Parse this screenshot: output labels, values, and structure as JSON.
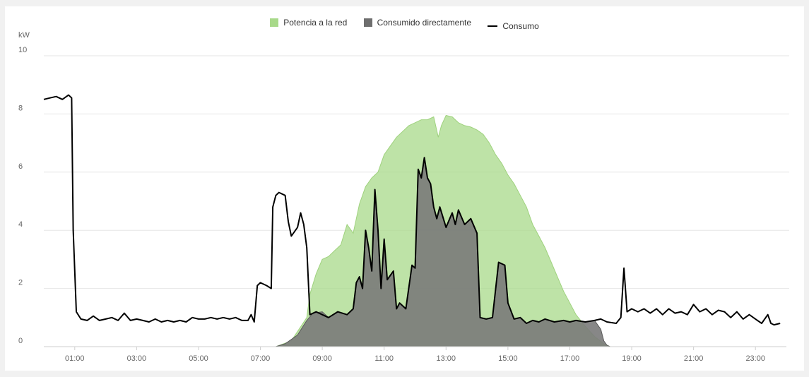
{
  "chart_data": {
    "type": "area",
    "ylabel": "kW",
    "ylim": [
      0,
      10
    ],
    "y_ticks": [
      "0",
      "2",
      "4",
      "6",
      "8",
      "10"
    ],
    "x_tick_labels": [
      "01:00",
      "03:00",
      "05:00",
      "07:00",
      "09:00",
      "11:00",
      "13:00",
      "15:00",
      "17:00",
      "19:00",
      "21:00",
      "23:00"
    ],
    "x_tick_hours": [
      1,
      3,
      5,
      7,
      9,
      11,
      13,
      15,
      17,
      19,
      21,
      23
    ],
    "xlim_hours": [
      0,
      24
    ],
    "grid": true,
    "legend_position": "top-center",
    "series": [
      {
        "name": "Potencia a la red",
        "type": "area",
        "color": "#a8d98a",
        "points": [
          [
            0,
            0
          ],
          [
            7.5,
            0
          ],
          [
            8.0,
            0.2
          ],
          [
            8.5,
            1.0
          ],
          [
            8.6,
            1.8
          ],
          [
            8.8,
            2.5
          ],
          [
            9.0,
            3.0
          ],
          [
            9.2,
            3.1
          ],
          [
            9.4,
            3.3
          ],
          [
            9.6,
            3.5
          ],
          [
            9.8,
            4.2
          ],
          [
            10.0,
            3.9
          ],
          [
            10.2,
            4.9
          ],
          [
            10.4,
            5.5
          ],
          [
            10.6,
            5.8
          ],
          [
            10.8,
            6.0
          ],
          [
            11.0,
            6.6
          ],
          [
            11.2,
            6.9
          ],
          [
            11.4,
            7.2
          ],
          [
            11.6,
            7.4
          ],
          [
            11.8,
            7.6
          ],
          [
            12.0,
            7.7
          ],
          [
            12.2,
            7.8
          ],
          [
            12.4,
            7.8
          ],
          [
            12.6,
            7.9
          ],
          [
            12.75,
            7.2
          ],
          [
            12.85,
            7.6
          ],
          [
            13.0,
            7.95
          ],
          [
            13.2,
            7.9
          ],
          [
            13.4,
            7.7
          ],
          [
            13.6,
            7.6
          ],
          [
            13.8,
            7.55
          ],
          [
            14.0,
            7.45
          ],
          [
            14.2,
            7.3
          ],
          [
            14.4,
            7.0
          ],
          [
            14.6,
            6.6
          ],
          [
            14.8,
            6.3
          ],
          [
            15.0,
            5.9
          ],
          [
            15.2,
            5.6
          ],
          [
            15.4,
            5.2
          ],
          [
            15.6,
            4.8
          ],
          [
            15.8,
            4.2
          ],
          [
            16.0,
            3.8
          ],
          [
            16.2,
            3.4
          ],
          [
            16.4,
            2.9
          ],
          [
            16.6,
            2.4
          ],
          [
            16.8,
            1.9
          ],
          [
            17.0,
            1.5
          ],
          [
            17.2,
            1.1
          ],
          [
            17.5,
            0.7
          ],
          [
            17.8,
            0.35
          ],
          [
            18.1,
            0.1
          ],
          [
            18.3,
            0
          ],
          [
            24,
            0
          ]
        ]
      },
      {
        "name": "Consumido directamente",
        "type": "area",
        "color": "#7a7a7a",
        "points": [
          [
            0,
            0
          ],
          [
            7.5,
            0
          ],
          [
            7.8,
            0.1
          ],
          [
            8.2,
            0.4
          ],
          [
            8.5,
            0.9
          ],
          [
            8.7,
            1.15
          ],
          [
            9.0,
            1.2
          ],
          [
            9.2,
            1.0
          ],
          [
            9.5,
            1.2
          ],
          [
            9.8,
            1.1
          ],
          [
            10.0,
            1.3
          ],
          [
            10.1,
            2.2
          ],
          [
            10.2,
            2.4
          ],
          [
            10.3,
            2.0
          ],
          [
            10.4,
            4.0
          ],
          [
            10.5,
            3.4
          ],
          [
            10.6,
            2.6
          ],
          [
            10.7,
            5.4
          ],
          [
            10.8,
            4.0
          ],
          [
            10.9,
            2.0
          ],
          [
            11.0,
            3.7
          ],
          [
            11.1,
            2.3
          ],
          [
            11.3,
            2.6
          ],
          [
            11.4,
            1.3
          ],
          [
            11.5,
            1.5
          ],
          [
            11.7,
            1.3
          ],
          [
            11.9,
            2.8
          ],
          [
            12.0,
            2.7
          ],
          [
            12.1,
            6.1
          ],
          [
            12.2,
            5.8
          ],
          [
            12.3,
            6.5
          ],
          [
            12.4,
            5.8
          ],
          [
            12.5,
            5.6
          ],
          [
            12.6,
            4.8
          ],
          [
            12.7,
            4.4
          ],
          [
            12.8,
            4.8
          ],
          [
            13.0,
            4.1
          ],
          [
            13.2,
            4.6
          ],
          [
            13.3,
            4.2
          ],
          [
            13.4,
            4.7
          ],
          [
            13.6,
            4.2
          ],
          [
            13.8,
            4.4
          ],
          [
            14.0,
            3.9
          ],
          [
            14.1,
            1.0
          ],
          [
            14.3,
            0.95
          ],
          [
            14.5,
            1.0
          ],
          [
            14.7,
            2.9
          ],
          [
            14.9,
            2.8
          ],
          [
            15.0,
            1.5
          ],
          [
            15.2,
            0.95
          ],
          [
            15.4,
            1.0
          ],
          [
            15.6,
            0.8
          ],
          [
            15.8,
            0.9
          ],
          [
            16.0,
            0.85
          ],
          [
            16.2,
            0.95
          ],
          [
            16.5,
            0.85
          ],
          [
            16.8,
            0.9
          ],
          [
            17.0,
            0.85
          ],
          [
            17.2,
            0.9
          ],
          [
            17.5,
            0.85
          ],
          [
            17.8,
            0.9
          ],
          [
            18.0,
            0.6
          ],
          [
            18.1,
            0.2
          ],
          [
            18.2,
            0.05
          ],
          [
            18.3,
            0
          ],
          [
            24,
            0
          ]
        ]
      },
      {
        "name": "Consumo",
        "type": "line",
        "color": "#000000",
        "points": [
          [
            0,
            8.5
          ],
          [
            0.2,
            8.55
          ],
          [
            0.4,
            8.6
          ],
          [
            0.6,
            8.5
          ],
          [
            0.8,
            8.65
          ],
          [
            0.9,
            8.55
          ],
          [
            0.95,
            4.0
          ],
          [
            1.05,
            1.2
          ],
          [
            1.2,
            0.95
          ],
          [
            1.4,
            0.9
          ],
          [
            1.6,
            1.05
          ],
          [
            1.8,
            0.9
          ],
          [
            2.0,
            0.95
          ],
          [
            2.2,
            1.0
          ],
          [
            2.4,
            0.9
          ],
          [
            2.6,
            1.15
          ],
          [
            2.8,
            0.9
          ],
          [
            3.0,
            0.95
          ],
          [
            3.2,
            0.9
          ],
          [
            3.4,
            0.85
          ],
          [
            3.6,
            0.95
          ],
          [
            3.8,
            0.85
          ],
          [
            4.0,
            0.9
          ],
          [
            4.2,
            0.85
          ],
          [
            4.4,
            0.9
          ],
          [
            4.6,
            0.85
          ],
          [
            4.8,
            1.0
          ],
          [
            5.0,
            0.95
          ],
          [
            5.2,
            0.95
          ],
          [
            5.4,
            1.0
          ],
          [
            5.6,
            0.95
          ],
          [
            5.8,
            1.0
          ],
          [
            6.0,
            0.95
          ],
          [
            6.2,
            1.0
          ],
          [
            6.4,
            0.9
          ],
          [
            6.6,
            0.9
          ],
          [
            6.7,
            1.1
          ],
          [
            6.8,
            0.85
          ],
          [
            6.9,
            2.1
          ],
          [
            7.0,
            2.2
          ],
          [
            7.2,
            2.1
          ],
          [
            7.35,
            2.0
          ],
          [
            7.4,
            4.8
          ],
          [
            7.5,
            5.2
          ],
          [
            7.6,
            5.3
          ],
          [
            7.8,
            5.2
          ],
          [
            7.9,
            4.3
          ],
          [
            8.0,
            3.8
          ],
          [
            8.2,
            4.1
          ],
          [
            8.3,
            4.6
          ],
          [
            8.4,
            4.2
          ],
          [
            8.5,
            3.4
          ],
          [
            8.6,
            1.1
          ],
          [
            8.8,
            1.2
          ],
          [
            9.0,
            1.1
          ],
          [
            9.2,
            1.0
          ],
          [
            9.5,
            1.2
          ],
          [
            9.8,
            1.1
          ],
          [
            10.0,
            1.3
          ],
          [
            10.1,
            2.2
          ],
          [
            10.2,
            2.4
          ],
          [
            10.3,
            2.0
          ],
          [
            10.4,
            4.0
          ],
          [
            10.5,
            3.4
          ],
          [
            10.6,
            2.6
          ],
          [
            10.7,
            5.4
          ],
          [
            10.8,
            4.0
          ],
          [
            10.9,
            2.0
          ],
          [
            11.0,
            3.7
          ],
          [
            11.1,
            2.3
          ],
          [
            11.3,
            2.6
          ],
          [
            11.4,
            1.3
          ],
          [
            11.5,
            1.5
          ],
          [
            11.7,
            1.3
          ],
          [
            11.9,
            2.8
          ],
          [
            12.0,
            2.7
          ],
          [
            12.1,
            6.1
          ],
          [
            12.2,
            5.8
          ],
          [
            12.3,
            6.5
          ],
          [
            12.4,
            5.8
          ],
          [
            12.5,
            5.6
          ],
          [
            12.6,
            4.8
          ],
          [
            12.7,
            4.4
          ],
          [
            12.8,
            4.8
          ],
          [
            13.0,
            4.1
          ],
          [
            13.2,
            4.6
          ],
          [
            13.3,
            4.2
          ],
          [
            13.4,
            4.7
          ],
          [
            13.6,
            4.2
          ],
          [
            13.8,
            4.4
          ],
          [
            14.0,
            3.9
          ],
          [
            14.1,
            1.0
          ],
          [
            14.3,
            0.95
          ],
          [
            14.5,
            1.0
          ],
          [
            14.7,
            2.9
          ],
          [
            14.9,
            2.8
          ],
          [
            15.0,
            1.5
          ],
          [
            15.2,
            0.95
          ],
          [
            15.4,
            1.0
          ],
          [
            15.6,
            0.8
          ],
          [
            15.8,
            0.9
          ],
          [
            16.0,
            0.85
          ],
          [
            16.2,
            0.95
          ],
          [
            16.5,
            0.85
          ],
          [
            16.8,
            0.9
          ],
          [
            17.0,
            0.85
          ],
          [
            17.2,
            0.9
          ],
          [
            17.5,
            0.85
          ],
          [
            17.8,
            0.9
          ],
          [
            18.0,
            0.95
          ],
          [
            18.2,
            0.85
          ],
          [
            18.5,
            0.8
          ],
          [
            18.65,
            1.0
          ],
          [
            18.75,
            2.7
          ],
          [
            18.85,
            1.2
          ],
          [
            19.0,
            1.3
          ],
          [
            19.2,
            1.2
          ],
          [
            19.4,
            1.3
          ],
          [
            19.6,
            1.15
          ],
          [
            19.8,
            1.3
          ],
          [
            20.0,
            1.1
          ],
          [
            20.2,
            1.3
          ],
          [
            20.4,
            1.15
          ],
          [
            20.6,
            1.2
          ],
          [
            20.8,
            1.1
          ],
          [
            21.0,
            1.45
          ],
          [
            21.2,
            1.2
          ],
          [
            21.4,
            1.3
          ],
          [
            21.6,
            1.1
          ],
          [
            21.8,
            1.25
          ],
          [
            22.0,
            1.2
          ],
          [
            22.2,
            1.0
          ],
          [
            22.4,
            1.2
          ],
          [
            22.6,
            0.95
          ],
          [
            22.8,
            1.1
          ],
          [
            23.0,
            0.95
          ],
          [
            23.2,
            0.8
          ],
          [
            23.4,
            1.1
          ],
          [
            23.5,
            0.8
          ],
          [
            23.6,
            0.75
          ],
          [
            23.8,
            0.8
          ]
        ]
      }
    ]
  }
}
